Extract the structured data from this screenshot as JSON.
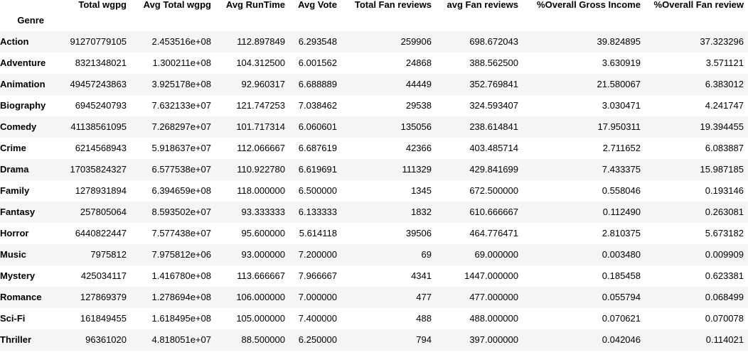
{
  "table": {
    "index_name": "Genre",
    "columns": [
      "Total wgpg",
      "Avg Total wgpg",
      "Avg RunTime",
      "Avg Vote",
      "Total Fan reviews",
      "avg Fan reviews",
      "%Overall Gross Income",
      "%Overall Fan review"
    ],
    "rows": [
      {
        "genre": "Action",
        "cells": [
          "91270779105",
          "2.453516e+08",
          "112.897849",
          "6.293548",
          "259906",
          "698.672043",
          "39.824895",
          "37.323296"
        ]
      },
      {
        "genre": "Adventure",
        "cells": [
          "8321348021",
          "1.300211e+08",
          "104.312500",
          "6.001562",
          "24868",
          "388.562500",
          "3.630919",
          "3.571121"
        ]
      },
      {
        "genre": "Animation",
        "cells": [
          "49457243863",
          "3.925178e+08",
          "92.960317",
          "6.688889",
          "44449",
          "352.769841",
          "21.580067",
          "6.383012"
        ]
      },
      {
        "genre": "Biography",
        "cells": [
          "6945240793",
          "7.632133e+07",
          "121.747253",
          "7.038462",
          "29538",
          "324.593407",
          "3.030471",
          "4.241747"
        ]
      },
      {
        "genre": "Comedy",
        "cells": [
          "41138561095",
          "7.268297e+07",
          "101.717314",
          "6.060601",
          "135056",
          "238.614841",
          "17.950311",
          "19.394455"
        ]
      },
      {
        "genre": "Crime",
        "cells": [
          "6214568943",
          "5.918637e+07",
          "112.066667",
          "6.687619",
          "42366",
          "403.485714",
          "2.711652",
          "6.083887"
        ]
      },
      {
        "genre": "Drama",
        "cells": [
          "17035824327",
          "6.577538e+07",
          "110.922780",
          "6.619691",
          "111329",
          "429.841699",
          "7.433375",
          "15.987185"
        ]
      },
      {
        "genre": "Family",
        "cells": [
          "1278931894",
          "6.394659e+08",
          "118.000000",
          "6.500000",
          "1345",
          "672.500000",
          "0.558046",
          "0.193146"
        ]
      },
      {
        "genre": "Fantasy",
        "cells": [
          "257805064",
          "8.593502e+07",
          "93.333333",
          "6.133333",
          "1832",
          "610.666667",
          "0.112490",
          "0.263081"
        ]
      },
      {
        "genre": "Horror",
        "cells": [
          "6440822447",
          "7.577438e+07",
          "95.600000",
          "5.614118",
          "39506",
          "464.776471",
          "2.810375",
          "5.673182"
        ]
      },
      {
        "genre": "Music",
        "cells": [
          "7975812",
          "7.975812e+06",
          "93.000000",
          "7.200000",
          "69",
          "69.000000",
          "0.003480",
          "0.009909"
        ]
      },
      {
        "genre": "Mystery",
        "cells": [
          "425034117",
          "1.416780e+08",
          "113.666667",
          "7.966667",
          "4341",
          "1447.000000",
          "0.185458",
          "0.623381"
        ]
      },
      {
        "genre": "Romance",
        "cells": [
          "127869379",
          "1.278694e+08",
          "106.000000",
          "7.000000",
          "477",
          "477.000000",
          "0.055794",
          "0.068499"
        ]
      },
      {
        "genre": "Sci-Fi",
        "cells": [
          "161849455",
          "1.618495e+08",
          "105.000000",
          "7.400000",
          "488",
          "488.000000",
          "0.070621",
          "0.070078"
        ]
      },
      {
        "genre": "Thriller",
        "cells": [
          "96361020",
          "4.818051e+07",
          "88.500000",
          "6.250000",
          "794",
          "397.000000",
          "0.042046",
          "0.114021"
        ]
      }
    ]
  }
}
